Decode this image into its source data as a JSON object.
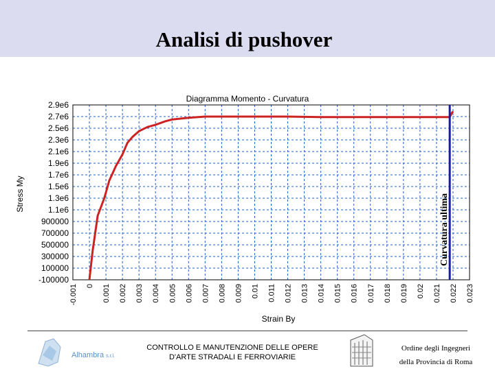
{
  "slide": {
    "title": "Analisi di pushover"
  },
  "footer": {
    "center_line1": "CONTROLLO E MANUTENZIONE DELLE OPERE",
    "center_line2": "D'ARTE STRADALI E FERROVIARIE",
    "right_line1": "Ordine degli Ingegneri",
    "right_line2": "della Provincia di Roma",
    "left_logo_text": "Alhambra",
    "left_logo_suffix": "s.r.l."
  },
  "colors": {
    "header_band": "#dcdcf0",
    "curve": "#cc2222",
    "ultimate_line": "#1a1aa0",
    "grid": "#1f5fbf"
  },
  "chart_data": {
    "type": "line",
    "title": "Diagramma Momento - Curvatura",
    "xlabel": "Strain By",
    "ylabel": "Stress My",
    "xlim": [
      -0.001,
      0.023
    ],
    "ylim": [
      -100000,
      2900000
    ],
    "xticks": [
      "-0.001",
      "0",
      "0.001",
      "0.002",
      "0.003",
      "0.004",
      "0.005",
      "0.006",
      "0.007",
      "0.008",
      "0.009",
      "0.01",
      "0.011",
      "0.012",
      "0.013",
      "0.014",
      "0.015",
      "0.016",
      "0.017",
      "0.018",
      "0.019",
      "0.02",
      "0.021",
      "0.022",
      "0.023"
    ],
    "yticks": [
      "2.9e6",
      "2.7e6",
      "2.5e6",
      "2.3e6",
      "2.1e6",
      "1.9e6",
      "1.7e6",
      "1.5e6",
      "1.3e6",
      "1.1e6",
      "900000",
      "700000",
      "500000",
      "300000",
      "100000",
      "-100000"
    ],
    "grid": true,
    "series": [
      {
        "x": [
          0.0,
          0.0002,
          0.0005,
          0.0009,
          0.0012,
          0.0016,
          0.002,
          0.0023,
          0.0026,
          0.003,
          0.0035,
          0.004,
          0.0046,
          0.005,
          0.006,
          0.007,
          0.0075,
          0.008,
          0.01,
          0.012,
          0.014,
          0.016,
          0.018,
          0.02,
          0.021,
          0.0218,
          0.0219,
          0.022
        ],
        "y": [
          -100000,
          400000,
          1000000,
          1300000,
          1600000,
          1850000,
          2050000,
          2250000,
          2350000,
          2450000,
          2520000,
          2560000,
          2620000,
          2650000,
          2680000,
          2700000,
          2700000,
          2700000,
          2700000,
          2700000,
          2690000,
          2690000,
          2690000,
          2690000,
          2690000,
          2690000,
          2750000,
          2790000
        ]
      }
    ],
    "vertical_line": {
      "x": 0.0218,
      "label": "Curvatura ultima"
    }
  }
}
